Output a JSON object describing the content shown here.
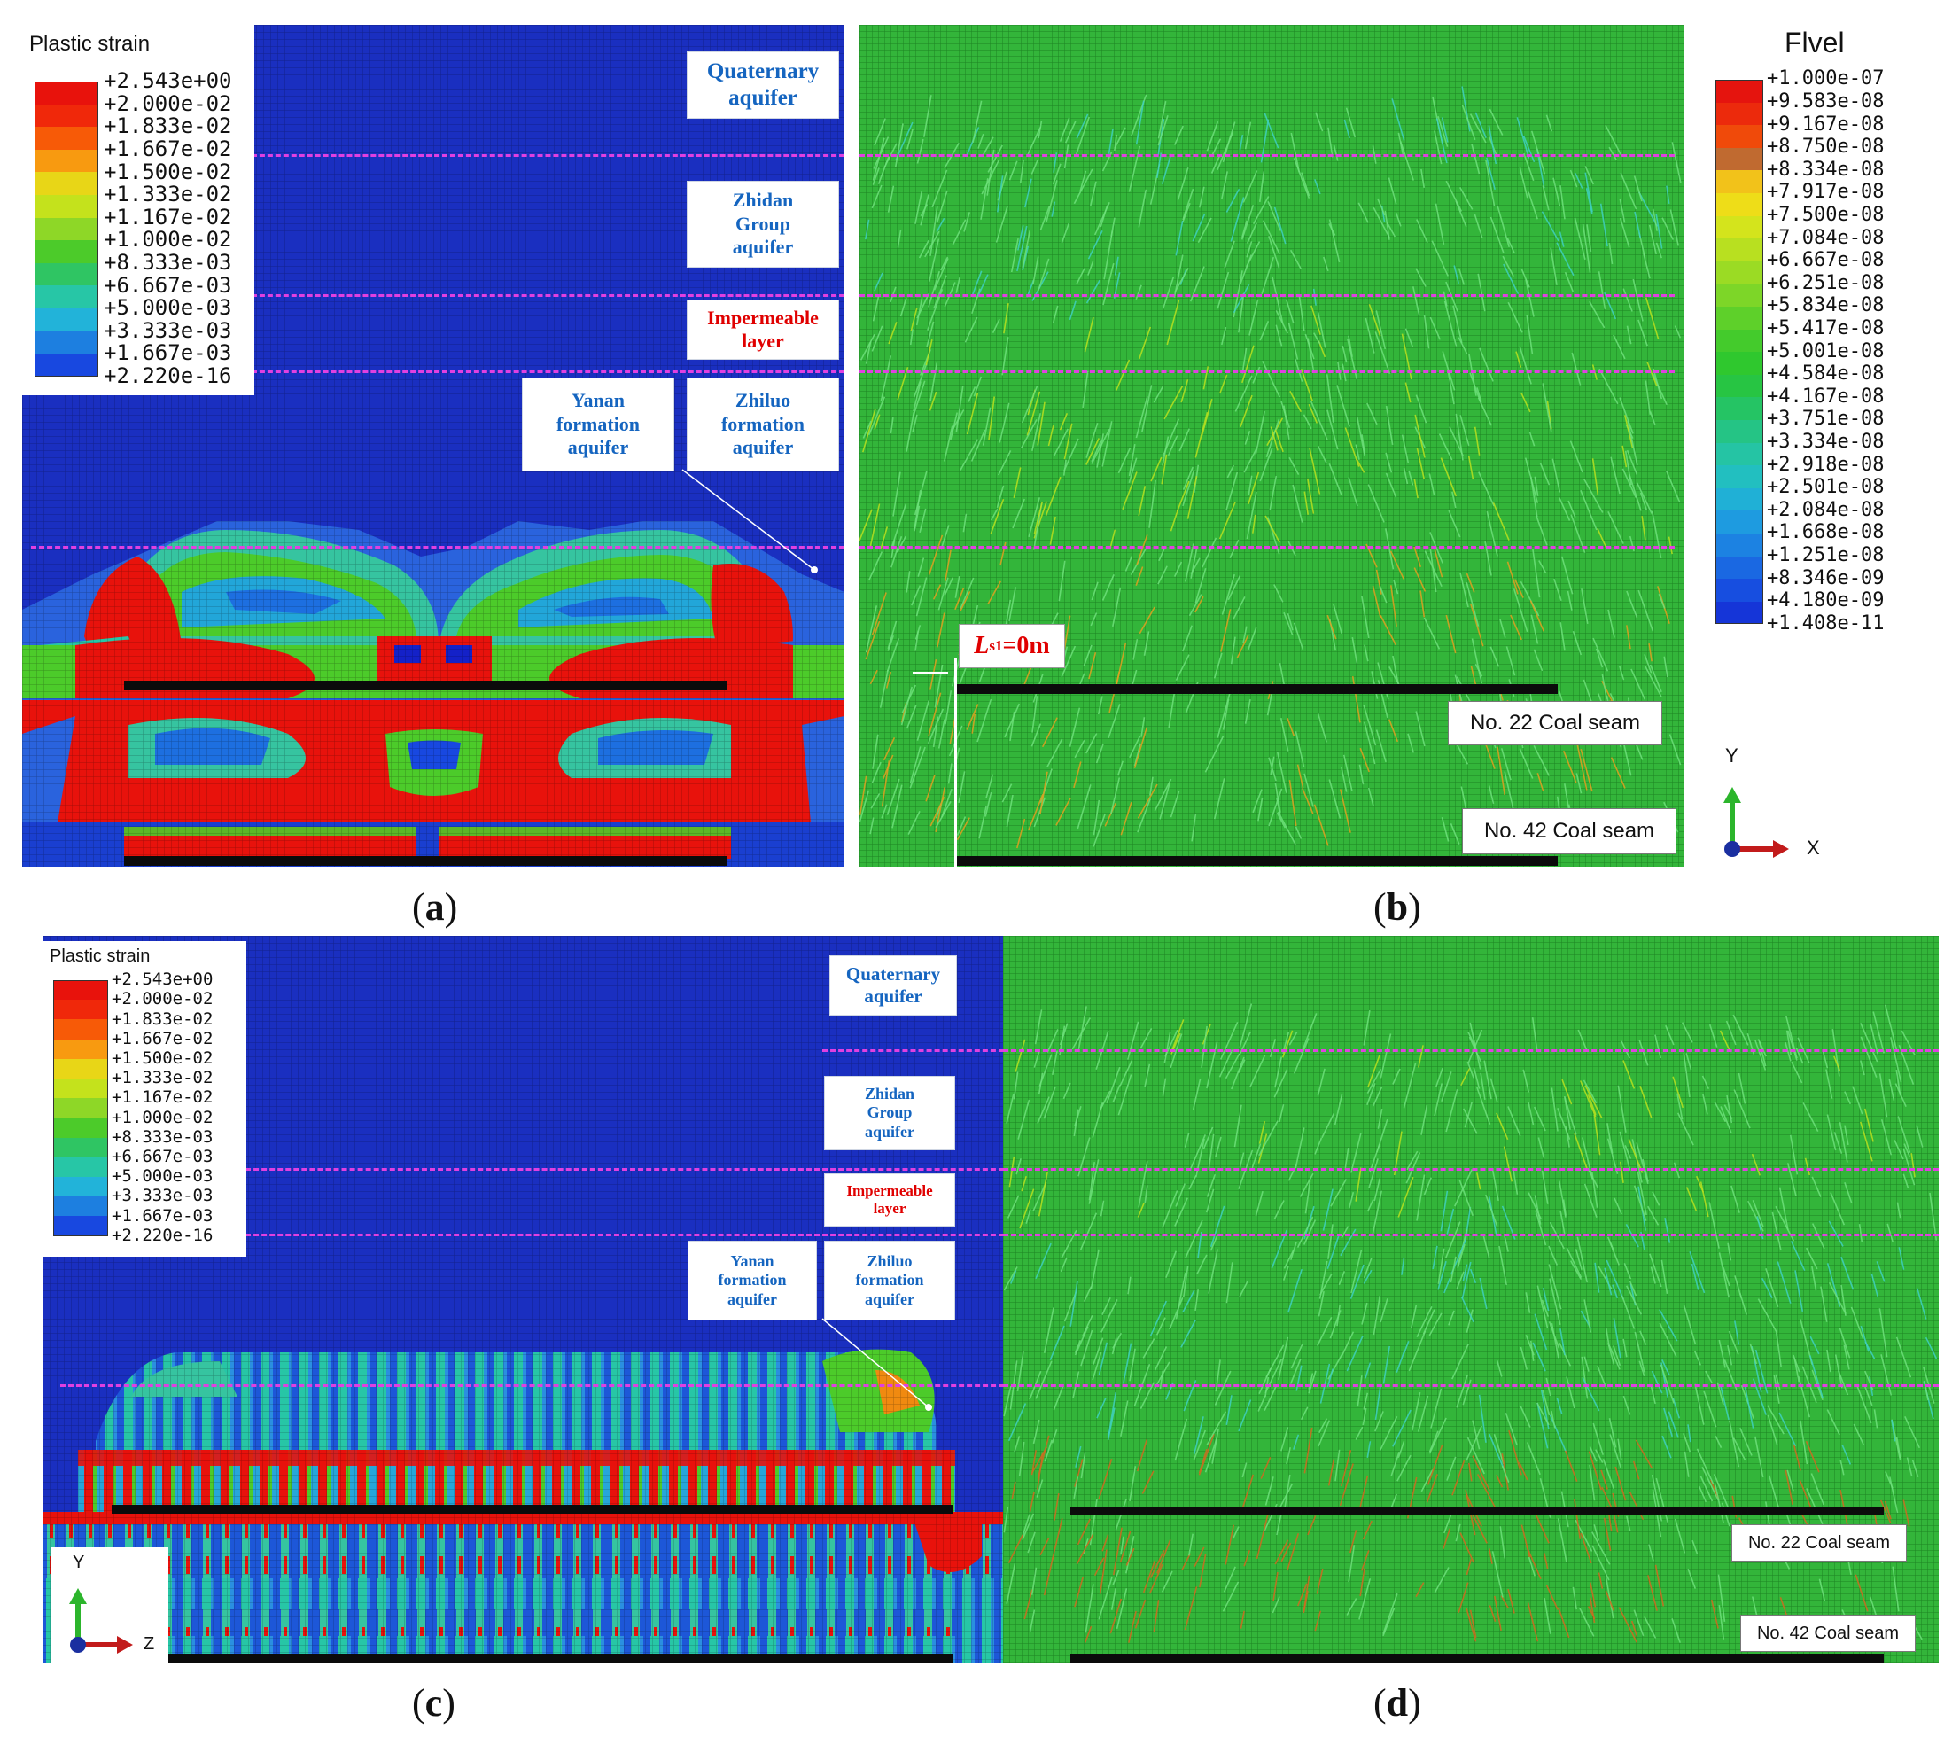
{
  "panels": {
    "a": {
      "caption_letter": "a",
      "legend_title": "Plastic strain",
      "labels": {
        "quaternary": [
          "Quaternary",
          "aquifer"
        ],
        "zhidan": [
          "Zhidan",
          "Group",
          "aquifer"
        ],
        "impermeable": [
          "Impermeable",
          "layer"
        ],
        "yanan": [
          "Yanan",
          "formation",
          "aquifer"
        ],
        "zhiluo": [
          "Zhiluo",
          "formation",
          "aquifer"
        ]
      }
    },
    "b": {
      "caption_letter": "b",
      "legend_title": "Flvel",
      "ls_label_main": "L",
      "ls_label_sub": "s1",
      "ls_label_rest": "=0m",
      "seam22": "No. 22 Coal seam",
      "seam42": "No. 42 Coal seam",
      "axis_y": "Y",
      "axis_x": "X"
    },
    "c": {
      "caption_letter": "c",
      "legend_title": "Plastic strain",
      "labels": {
        "quaternary": [
          "Quaternary",
          "aquifer"
        ],
        "zhidan": [
          "Zhidan",
          "Group",
          "aquifer"
        ],
        "impermeable": [
          "Impermeable",
          "layer"
        ],
        "yanan": [
          "Yanan",
          "formation",
          "aquifer"
        ],
        "zhiluo": [
          "Zhiluo",
          "formation",
          "aquifer"
        ]
      },
      "axis_y": "Y",
      "axis_z": "Z"
    },
    "d": {
      "caption_letter": "d",
      "seam22": "No. 22 Coal seam",
      "seam42": "No. 42 Coal seam"
    }
  },
  "plastic_strain_legend": [
    {
      "value": "+2.543e+00",
      "color": "#e8120c"
    },
    {
      "value": "+2.000e-02",
      "color": "#f0280a"
    },
    {
      "value": "+1.833e-02",
      "color": "#f75a07"
    },
    {
      "value": "+1.667e-02",
      "color": "#f89a10"
    },
    {
      "value": "+1.500e-02",
      "color": "#e8d617"
    },
    {
      "value": "+1.333e-02",
      "color": "#c4e21c"
    },
    {
      "value": "+1.167e-02",
      "color": "#8ed727"
    },
    {
      "value": "+1.000e-02",
      "color": "#4ccb2a"
    },
    {
      "value": "+8.333e-03",
      "color": "#2fc563"
    },
    {
      "value": "+6.667e-03",
      "color": "#27c6a6"
    },
    {
      "value": "+5.000e-03",
      "color": "#22b3d9"
    },
    {
      "value": "+3.333e-03",
      "color": "#1d7fe0"
    },
    {
      "value": "+1.667e-03",
      "color": "#1848e0"
    },
    {
      "value": "+2.220e-16",
      "color": "#1421c8"
    }
  ],
  "flvel_legend": [
    {
      "value": "+1.000e-07",
      "color": "#e5140e"
    },
    {
      "value": "+9.583e-08",
      "color": "#ec2a0c"
    },
    {
      "value": "+9.167e-08",
      "color": "#f04a0a"
    },
    {
      "value": "+8.750e-08",
      "color": "#c06a30"
    },
    {
      "value": "+8.334e-08",
      "color": "#f2c21a"
    },
    {
      "value": "+7.917e-08",
      "color": "#eedd18"
    },
    {
      "value": "+7.500e-08",
      "color": "#d4e41c"
    },
    {
      "value": "+7.084e-08",
      "color": "#b8e020"
    },
    {
      "value": "+6.667e-08",
      "color": "#9bdb24"
    },
    {
      "value": "+6.251e-08",
      "color": "#7dd628"
    },
    {
      "value": "+5.834e-08",
      "color": "#5ed02a"
    },
    {
      "value": "+5.417e-08",
      "color": "#44cb2c"
    },
    {
      "value": "+5.001e-08",
      "color": "#2fc82e"
    },
    {
      "value": "+4.584e-08",
      "color": "#27c543"
    },
    {
      "value": "+4.167e-08",
      "color": "#25c464"
    },
    {
      "value": "+3.751e-08",
      "color": "#25c485"
    },
    {
      "value": "+3.334e-08",
      "color": "#25c4a4"
    },
    {
      "value": "+2.918e-08",
      "color": "#22bfc0"
    },
    {
      "value": "+2.501e-08",
      "color": "#20b0d6"
    },
    {
      "value": "+2.084e-08",
      "color": "#1e9be0"
    },
    {
      "value": "+1.668e-08",
      "color": "#1c82e2"
    },
    {
      "value": "+1.251e-08",
      "color": "#1a68e2"
    },
    {
      "value": "+8.346e-09",
      "color": "#174ee0"
    },
    {
      "value": "+4.180e-09",
      "color": "#1535d8"
    },
    {
      "value": "+1.408e-11",
      "color": "#1020c8"
    }
  ]
}
